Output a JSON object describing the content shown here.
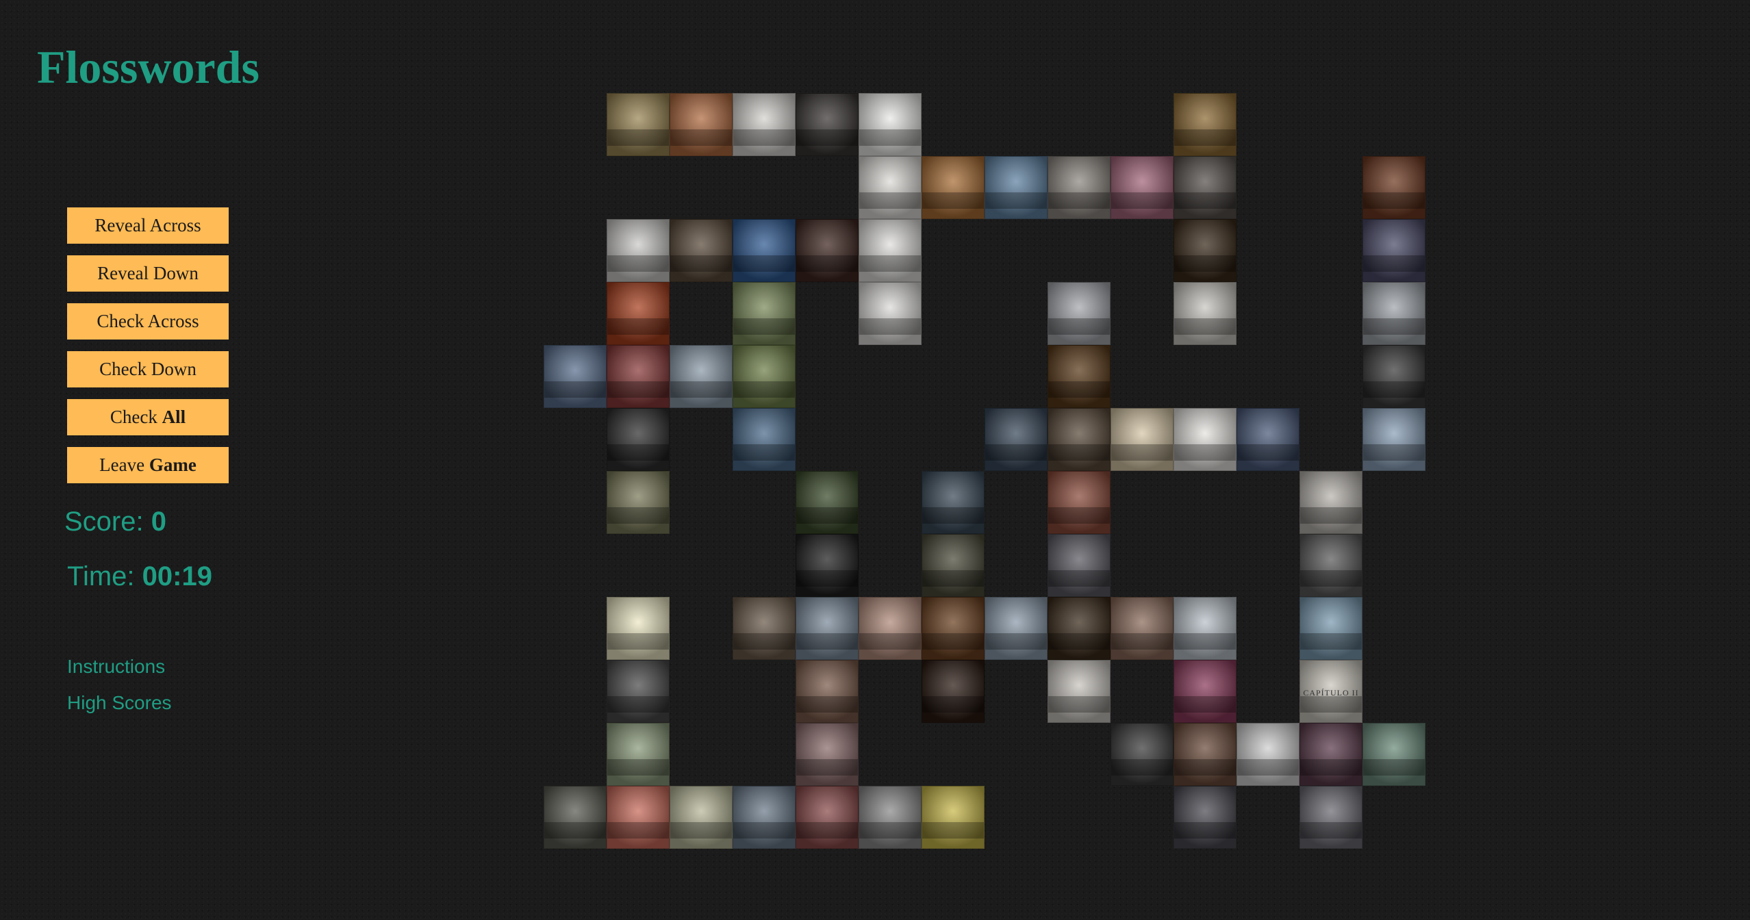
{
  "app": {
    "title": "Flosswords"
  },
  "controls": {
    "reveal_across": "Reveal Across",
    "reveal_down": "Reveal Down",
    "check_across": "Check Across",
    "check_down": "Check Down",
    "check_all_prefix": "Check",
    "check_all_bold": "All",
    "leave_game_prefix": "Leave",
    "leave_game_bold": "Game"
  },
  "status": {
    "score_label": "Score:",
    "score_value": "0",
    "time_label": "Time:",
    "time_value": "00:19"
  },
  "links": {
    "instructions": "Instructions",
    "high_scores": "High Scores"
  },
  "colors": {
    "background": "#1b1b1b",
    "accent_teal": "#1f9e84",
    "button_orange": "#ffbb55"
  },
  "board": {
    "columns": 14,
    "rows": 12,
    "tile_text": {
      "capitulo": "CAPÍTULO II"
    },
    "cells": [
      {
        "r": 0,
        "c": 1,
        "color": "#9a8654"
      },
      {
        "r": 0,
        "c": 2,
        "color": "#b06a40"
      },
      {
        "r": 0,
        "c": 3,
        "color": "#d5d3cf"
      },
      {
        "r": 0,
        "c": 4,
        "color": "#3a3634"
      },
      {
        "r": 0,
        "c": 5,
        "color": "#e9e9e6"
      },
      {
        "r": 0,
        "c": 10,
        "color": "#8c6a34"
      },
      {
        "r": 1,
        "c": 5,
        "color": "#dedcd8"
      },
      {
        "r": 1,
        "c": 6,
        "color": "#a86d35"
      },
      {
        "r": 1,
        "c": 7,
        "color": "#5f82a2"
      },
      {
        "r": 1,
        "c": 8,
        "color": "#8d8781"
      },
      {
        "r": 1,
        "c": 9,
        "color": "#a3657a"
      },
      {
        "r": 1,
        "c": 10,
        "color": "#56504c"
      },
      {
        "r": 1,
        "c": 13,
        "color": "#6f3a22"
      },
      {
        "r": 2,
        "c": 1,
        "color": "#cbcac7"
      },
      {
        "r": 2,
        "c": 2,
        "color": "#5a4a3a"
      },
      {
        "r": 2,
        "c": 3,
        "color": "#2f5a92"
      },
      {
        "r": 2,
        "c": 4,
        "color": "#3e2620"
      },
      {
        "r": 2,
        "c": 5,
        "color": "#e0dfdc"
      },
      {
        "r": 2,
        "c": 10,
        "color": "#3a2a1a"
      },
      {
        "r": 2,
        "c": 13,
        "color": "#4a4a68"
      },
      {
        "r": 3,
        "c": 1,
        "color": "#a8401f"
      },
      {
        "r": 3,
        "c": 3,
        "color": "#7a8a5a"
      },
      {
        "r": 3,
        "c": 5,
        "color": "#dcdbd8"
      },
      {
        "r": 3,
        "c": 8,
        "color": "#a4a7ac"
      },
      {
        "r": 3,
        "c": 10,
        "color": "#c9c6c0"
      },
      {
        "r": 3,
        "c": 13,
        "color": "#a0a5ab"
      },
      {
        "r": 4,
        "c": 0,
        "color": "#5a6f8e"
      },
      {
        "r": 4,
        "c": 1,
        "color": "#8a3a3a"
      },
      {
        "r": 4,
        "c": 2,
        "color": "#8a9aa8"
      },
      {
        "r": 4,
        "c": 3,
        "color": "#6e7f48"
      },
      {
        "r": 4,
        "c": 8,
        "color": "#5a3a1a"
      },
      {
        "r": 4,
        "c": 13,
        "color": "#3a3a3a"
      },
      {
        "r": 5,
        "c": 1,
        "color": "#2f2f2f"
      },
      {
        "r": 5,
        "c": 3,
        "color": "#4a6a8a"
      },
      {
        "r": 5,
        "c": 7,
        "color": "#3a4a5c"
      },
      {
        "r": 5,
        "c": 8,
        "color": "#5a4a3a"
      },
      {
        "r": 5,
        "c": 9,
        "color": "#d6c6a6"
      },
      {
        "r": 5,
        "c": 10,
        "color": "#e6e4e0"
      },
      {
        "r": 5,
        "c": 11,
        "color": "#4a5a7a"
      },
      {
        "r": 5,
        "c": 13,
        "color": "#8aa0b8"
      },
      {
        "r": 6,
        "c": 1,
        "color": "#7a7a5a"
      },
      {
        "r": 6,
        "c": 4,
        "color": "#3a4a2a"
      },
      {
        "r": 6,
        "c": 6,
        "color": "#3a4a58"
      },
      {
        "r": 6,
        "c": 8,
        "color": "#8a4a3a"
      },
      {
        "r": 6,
        "c": 12,
        "color": "#b8b4ae"
      },
      {
        "r": 7,
        "c": 4,
        "color": "#1f1f1f"
      },
      {
        "r": 7,
        "c": 6,
        "color": "#4a4a3a"
      },
      {
        "r": 7,
        "c": 8,
        "color": "#5a5a62"
      },
      {
        "r": 7,
        "c": 12,
        "color": "#5a5a5a"
      },
      {
        "r": 8,
        "c": 1,
        "color": "#ece8c4"
      },
      {
        "r": 8,
        "c": 3,
        "color": "#6a5a4a"
      },
      {
        "r": 8,
        "c": 4,
        "color": "#7a8a9a"
      },
      {
        "r": 8,
        "c": 5,
        "color": "#b08a7a"
      },
      {
        "r": 8,
        "c": 6,
        "color": "#6a4020"
      },
      {
        "r": 8,
        "c": 7,
        "color": "#8a9aaa"
      },
      {
        "r": 8,
        "c": 8,
        "color": "#3a2a1a"
      },
      {
        "r": 8,
        "c": 9,
        "color": "#8a6a5a"
      },
      {
        "r": 8,
        "c": 10,
        "color": "#b8c0c8"
      },
      {
        "r": 8,
        "c": 12,
        "color": "#7a9ab0"
      },
      {
        "r": 9,
        "c": 1,
        "color": "#4a4a4a"
      },
      {
        "r": 9,
        "c": 4,
        "color": "#7a5a4a"
      },
      {
        "r": 9,
        "c": 6,
        "color": "#2a1a12"
      },
      {
        "r": 9,
        "c": 8,
        "color": "#c8c4be"
      },
      {
        "r": 9,
        "c": 10,
        "color": "#8a3a5a"
      },
      {
        "r": 9,
        "c": 12,
        "color": "#cac6bc"
      },
      {
        "r": 10,
        "c": 1,
        "color": "#8a9a7a"
      },
      {
        "r": 10,
        "c": 4,
        "color": "#8a6a6a"
      },
      {
        "r": 10,
        "c": 9,
        "color": "#3a3a3a"
      },
      {
        "r": 10,
        "c": 10,
        "color": "#6a4a3a"
      },
      {
        "r": 10,
        "c": 11,
        "color": "#cfcfcf"
      },
      {
        "r": 10,
        "c": 12,
        "color": "#5a3a4a"
      },
      {
        "r": 10,
        "c": 13,
        "color": "#6a8a7a"
      },
      {
        "r": 11,
        "c": 0,
        "color": "#5a5a52"
      },
      {
        "r": 11,
        "c": 1,
        "color": "#c86a5a"
      },
      {
        "r": 11,
        "c": 2,
        "color": "#b8b89a"
      },
      {
        "r": 11,
        "c": 3,
        "color": "#6a7a8a"
      },
      {
        "r": 11,
        "c": 4,
        "color": "#8a4a4a"
      },
      {
        "r": 11,
        "c": 5,
        "color": "#8a8a8a"
      },
      {
        "r": 11,
        "c": 6,
        "color": "#c8b84a"
      },
      {
        "r": 11,
        "c": 10,
        "color": "#4a4a52"
      },
      {
        "r": 11,
        "c": 12,
        "color": "#6a6a72"
      }
    ]
  }
}
